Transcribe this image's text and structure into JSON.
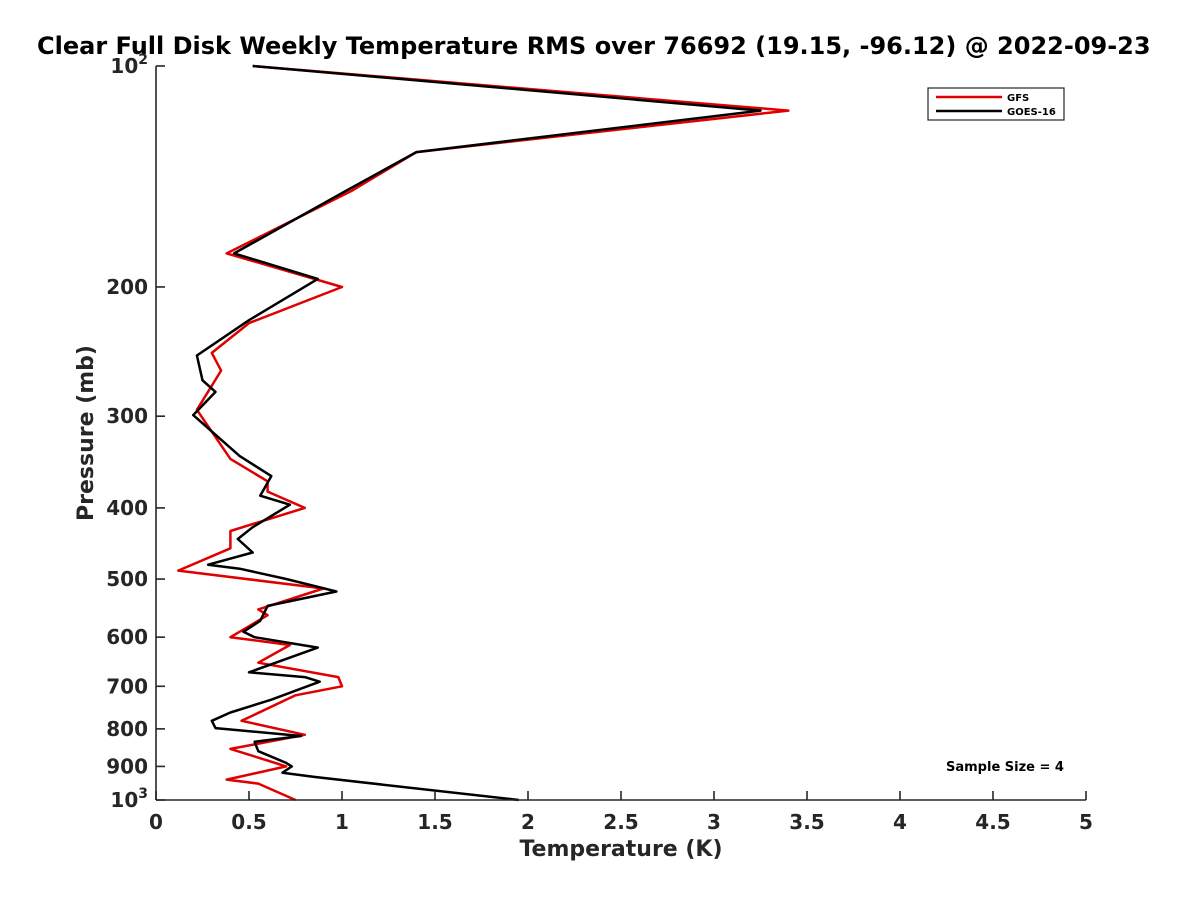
{
  "chart_data": {
    "type": "line",
    "title": "Clear Full Disk Weekly Temperature RMS over 76692 (19.15, -96.12) @ 2022-09-23",
    "xlabel": "Temperature (K)",
    "ylabel": "Pressure (mb)",
    "xlim": [
      0,
      5
    ],
    "ylim": [
      100,
      1000
    ],
    "y_scale": "log",
    "y_reversed": true,
    "grid": false,
    "legend_position": "top-right",
    "x_ticks": [
      0,
      0.5,
      1,
      1.5,
      2,
      2.5,
      3,
      3.5,
      4,
      4.5,
      5
    ],
    "x_tick_labels": [
      "0",
      "0.5",
      "1",
      "1.5",
      "2",
      "2.5",
      "3",
      "3.5",
      "4",
      "4.5",
      "5"
    ],
    "y_ticks": [
      100,
      200,
      300,
      400,
      500,
      600,
      700,
      800,
      900,
      1000
    ],
    "y_tick_labels": [
      {
        "base": "10",
        "exp": "2"
      },
      {
        "base": "200",
        "exp": ""
      },
      {
        "base": "300",
        "exp": ""
      },
      {
        "base": "400",
        "exp": ""
      },
      {
        "base": "500",
        "exp": ""
      },
      {
        "base": "600",
        "exp": ""
      },
      {
        "base": "700",
        "exp": ""
      },
      {
        "base": "800",
        "exp": ""
      },
      {
        "base": "900",
        "exp": ""
      },
      {
        "base": "10",
        "exp": "3"
      }
    ],
    "annotation": "Sample Size = 4",
    "series": [
      {
        "name": "GFS",
        "color": "#e00000",
        "points": [
          [
            0.52,
            100
          ],
          [
            3.4,
            115
          ],
          [
            1.4,
            131
          ],
          [
            1.05,
            148
          ],
          [
            0.38,
            180
          ],
          [
            1.0,
            200
          ],
          [
            0.5,
            224
          ],
          [
            0.3,
            246
          ],
          [
            0.35,
            260
          ],
          [
            0.22,
            294
          ],
          [
            0.4,
            343
          ],
          [
            0.6,
            368
          ],
          [
            0.6,
            380
          ],
          [
            0.8,
            400
          ],
          [
            0.4,
            430
          ],
          [
            0.4,
            454
          ],
          [
            0.12,
            487
          ],
          [
            0.9,
            515
          ],
          [
            0.55,
            550
          ],
          [
            0.6,
            560
          ],
          [
            0.4,
            600
          ],
          [
            0.72,
            615
          ],
          [
            0.55,
            650
          ],
          [
            0.98,
            680
          ],
          [
            1.0,
            700
          ],
          [
            0.75,
            720
          ],
          [
            0.46,
            780
          ],
          [
            0.8,
            815
          ],
          [
            0.53,
            840
          ],
          [
            0.4,
            852
          ],
          [
            0.7,
            900
          ],
          [
            0.38,
            938
          ],
          [
            0.55,
            950
          ],
          [
            0.75,
            1000
          ]
        ]
      },
      {
        "name": "GOES-16",
        "color": "#000000",
        "points": [
          [
            0.52,
            100
          ],
          [
            3.25,
            115
          ],
          [
            1.4,
            131
          ],
          [
            1.02,
            148
          ],
          [
            0.42,
            180
          ],
          [
            0.87,
            195
          ],
          [
            0.5,
            222
          ],
          [
            0.22,
            248
          ],
          [
            0.25,
            268
          ],
          [
            0.32,
            278
          ],
          [
            0.2,
            299
          ],
          [
            0.45,
            340
          ],
          [
            0.62,
            362
          ],
          [
            0.56,
            385
          ],
          [
            0.72,
            396
          ],
          [
            0.52,
            425
          ],
          [
            0.44,
            441
          ],
          [
            0.52,
            460
          ],
          [
            0.28,
            478
          ],
          [
            0.45,
            484
          ],
          [
            0.7,
            500
          ],
          [
            0.97,
            520
          ],
          [
            0.6,
            544
          ],
          [
            0.56,
            570
          ],
          [
            0.47,
            590
          ],
          [
            0.53,
            600
          ],
          [
            0.87,
            620
          ],
          [
            0.5,
            670
          ],
          [
            0.8,
            680
          ],
          [
            0.88,
            690
          ],
          [
            0.62,
            730
          ],
          [
            0.4,
            760
          ],
          [
            0.3,
            780
          ],
          [
            0.32,
            798
          ],
          [
            0.78,
            818
          ],
          [
            0.53,
            833
          ],
          [
            0.55,
            858
          ],
          [
            0.7,
            890
          ],
          [
            0.73,
            900
          ],
          [
            0.68,
            918
          ],
          [
            0.85,
            930
          ],
          [
            1.95,
            1000
          ]
        ]
      }
    ]
  }
}
